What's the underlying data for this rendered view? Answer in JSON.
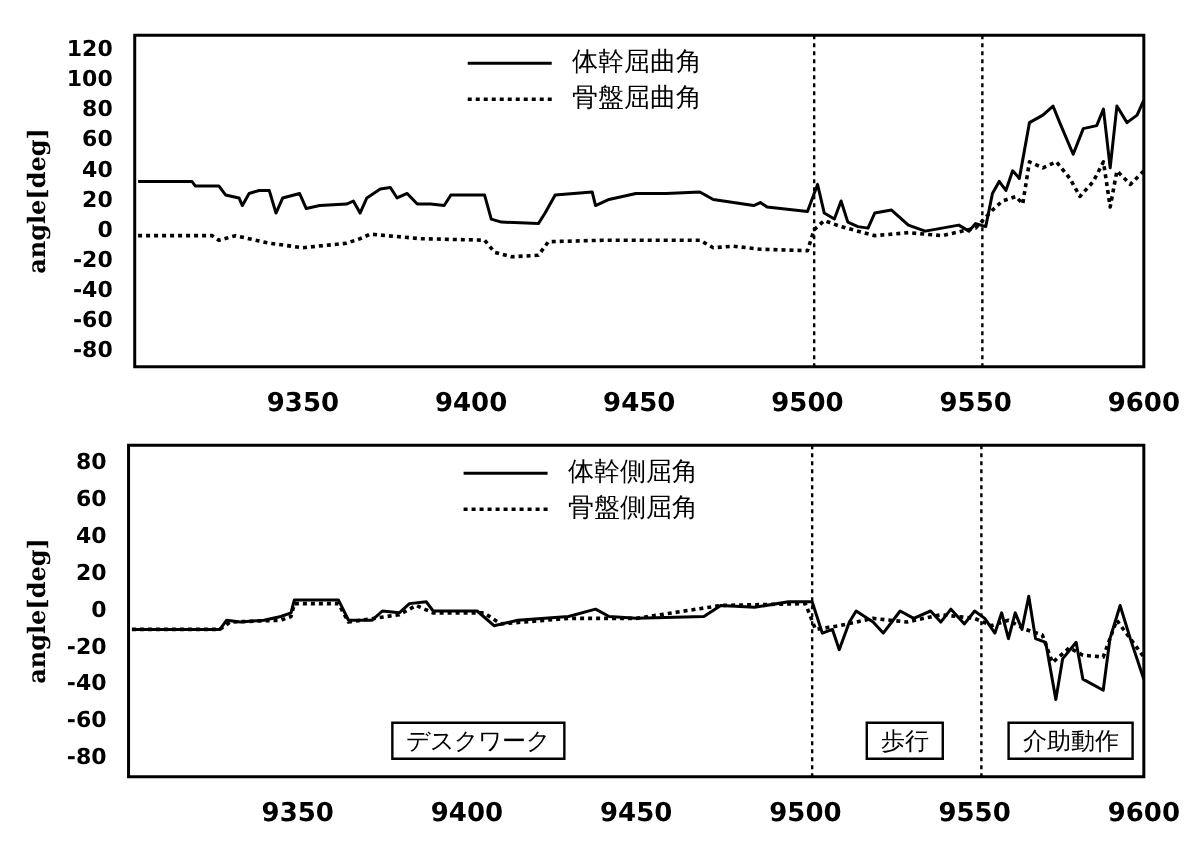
{
  "chart_data": [
    {
      "type": "line",
      "ylabel": "angle[deg]",
      "xlim": [
        9300,
        9600
      ],
      "xticks": [
        9350,
        9400,
        9450,
        9500,
        9550,
        9600
      ],
      "ylim": [
        -90,
        130
      ],
      "yticks": [
        -80,
        -60,
        -40,
        -20,
        0,
        20,
        40,
        60,
        80,
        100,
        120
      ],
      "grid": false,
      "legend": "top",
      "marker": "none",
      "ref_lines": [
        {
          "axis": "x",
          "value": 9502,
          "line_style": "dotted",
          "color": "#000000"
        },
        {
          "axis": "x",
          "value": 9552,
          "line_style": "dotted",
          "color": "#000000"
        }
      ],
      "series": [
        {
          "name": "体幹屈曲角",
          "color": "#000000",
          "line_style": "solid",
          "x": [
            9301,
            9317,
            9318,
            9325,
            9327,
            9331,
            9332,
            9334,
            9337,
            9340,
            9342,
            9344,
            9349,
            9351,
            9355,
            9363,
            9365,
            9367,
            9369,
            9373,
            9376,
            9378,
            9381,
            9384,
            9388,
            9392,
            9394,
            9404,
            9406,
            9409,
            9420,
            9422,
            9425,
            9436,
            9437,
            9441,
            9449,
            9458,
            9468,
            9472,
            9478,
            9484,
            9486,
            9488,
            9500,
            9503,
            9505,
            9508,
            9510,
            9512,
            9515,
            9518,
            9520,
            9525,
            9530,
            9535,
            9545,
            9548,
            9550,
            9553,
            9555,
            9557,
            9559,
            9561,
            9563,
            9566,
            9570,
            9573,
            9575,
            9579,
            9582,
            9586,
            9588,
            9590,
            9592,
            9595,
            9598,
            9600
          ],
          "values": [
            33,
            33,
            30,
            30,
            24,
            22,
            17,
            25,
            27,
            27,
            12,
            22,
            25,
            15,
            17,
            18,
            20,
            12,
            22,
            28,
            29,
            22,
            25,
            18,
            18,
            17,
            24,
            24,
            8,
            6,
            5,
            12,
            24,
            26,
            17,
            21,
            25,
            25,
            26,
            21,
            19,
            17,
            19,
            16,
            13,
            31,
            12,
            8,
            20,
            6,
            3,
            2,
            12,
            14,
            4,
            0,
            4,
            0,
            5,
            3,
            25,
            33,
            27,
            40,
            35,
            72,
            77,
            83,
            72,
            51,
            68,
            70,
            81,
            42,
            83,
            72,
            77,
            87
          ]
        },
        {
          "name": "骨盤屈曲角",
          "color": "#000000",
          "line_style": "dotted",
          "x": [
            9301,
            9323,
            9325,
            9330,
            9340,
            9350,
            9363,
            9367,
            9370,
            9385,
            9404,
            9407,
            9412,
            9420,
            9423,
            9440,
            9468,
            9472,
            9478,
            9486,
            9500,
            9502,
            9505,
            9510,
            9515,
            9520,
            9530,
            9540,
            9550,
            9555,
            9558,
            9562,
            9564,
            9566,
            9570,
            9574,
            9578,
            9581,
            9585,
            9588,
            9590,
            9592,
            9596,
            9600
          ],
          "values": [
            -3,
            -3,
            -6,
            -3,
            -8,
            -11,
            -8,
            -5,
            -2,
            -5,
            -6,
            -14,
            -17,
            -16,
            -7,
            -6,
            -6,
            -11,
            -10,
            -12,
            -13,
            1,
            7,
            3,
            0,
            -3,
            -1,
            -3,
            2,
            14,
            20,
            23,
            18,
            46,
            42,
            46,
            35,
            23,
            33,
            46,
            16,
            40,
            31,
            40
          ]
        }
      ]
    },
    {
      "type": "line",
      "ylabel": "angle[deg]",
      "xlim": [
        9300,
        9600
      ],
      "xticks": [
        9350,
        9400,
        9450,
        9500,
        9550,
        9600
      ],
      "ylim": [
        -90,
        90
      ],
      "yticks": [
        -80,
        -60,
        -40,
        -20,
        0,
        20,
        40,
        60,
        80
      ],
      "grid": false,
      "legend": "top",
      "marker": "none",
      "ref_lines": [
        {
          "axis": "x",
          "value": 9502,
          "line_style": "dotted",
          "color": "#000000"
        },
        {
          "axis": "x",
          "value": 9552,
          "line_style": "dotted",
          "color": "#000000"
        }
      ],
      "annotations": [
        "デスクワーク",
        "歩行",
        "介助動作"
      ],
      "series": [
        {
          "name": "体幹側屈角",
          "color": "#000000",
          "line_style": "solid",
          "x": [
            9301,
            9327,
            9329,
            9333,
            9340,
            9345,
            9348,
            9349,
            9362,
            9365,
            9372,
            9375,
            9380,
            9383,
            9388,
            9390,
            9403,
            9408,
            9415,
            9430,
            9438,
            9442,
            9450,
            9470,
            9475,
            9485,
            9495,
            9502,
            9505,
            9508,
            9510,
            9513,
            9515,
            9520,
            9523,
            9528,
            9532,
            9537,
            9540,
            9543,
            9547,
            9550,
            9553,
            9556,
            9558,
            9560,
            9562,
            9564,
            9566,
            9568,
            9571,
            9574,
            9576,
            9580,
            9582,
            9588,
            9590,
            9593,
            9596,
            9600
          ],
          "values": [
            -10,
            -10,
            -5,
            -6,
            -5,
            -3,
            -1,
            6,
            6,
            -5,
            -5,
            0,
            -1,
            4,
            5,
            0,
            0,
            -8,
            -5,
            -3,
            1,
            -3,
            -4,
            -3,
            3,
            2,
            5,
            5,
            -12,
            -10,
            -21,
            -6,
            0,
            -6,
            -12,
            0,
            -4,
            0,
            -6,
            1,
            -7,
            0,
            -4,
            -12,
            -1,
            -15,
            -1,
            -10,
            8,
            -15,
            -17,
            -48,
            -26,
            -17,
            -37,
            -43,
            -15,
            3,
            -15,
            -37
          ]
        },
        {
          "name": "骨盤側屈角",
          "color": "#000000",
          "line_style": "dotted",
          "x": [
            9301,
            9327,
            9330,
            9345,
            9348,
            9349,
            9362,
            9365,
            9380,
            9385,
            9390,
            9405,
            9410,
            9430,
            9450,
            9475,
            9500,
            9503,
            9510,
            9520,
            9530,
            9540,
            9550,
            9555,
            9560,
            9565,
            9570,
            9573,
            9578,
            9582,
            9588,
            9592,
            9596,
            9600
          ],
          "values": [
            -10,
            -10,
            -6,
            -5,
            -3,
            4,
            4,
            -6,
            -2,
            3,
            -1,
            -1,
            -7,
            -4,
            -4,
            3,
            4,
            -10,
            -8,
            -4,
            -6,
            -2,
            -4,
            -8,
            -5,
            -10,
            -13,
            -28,
            -20,
            -24,
            -25,
            -5,
            -15,
            -25
          ]
        }
      ]
    }
  ]
}
